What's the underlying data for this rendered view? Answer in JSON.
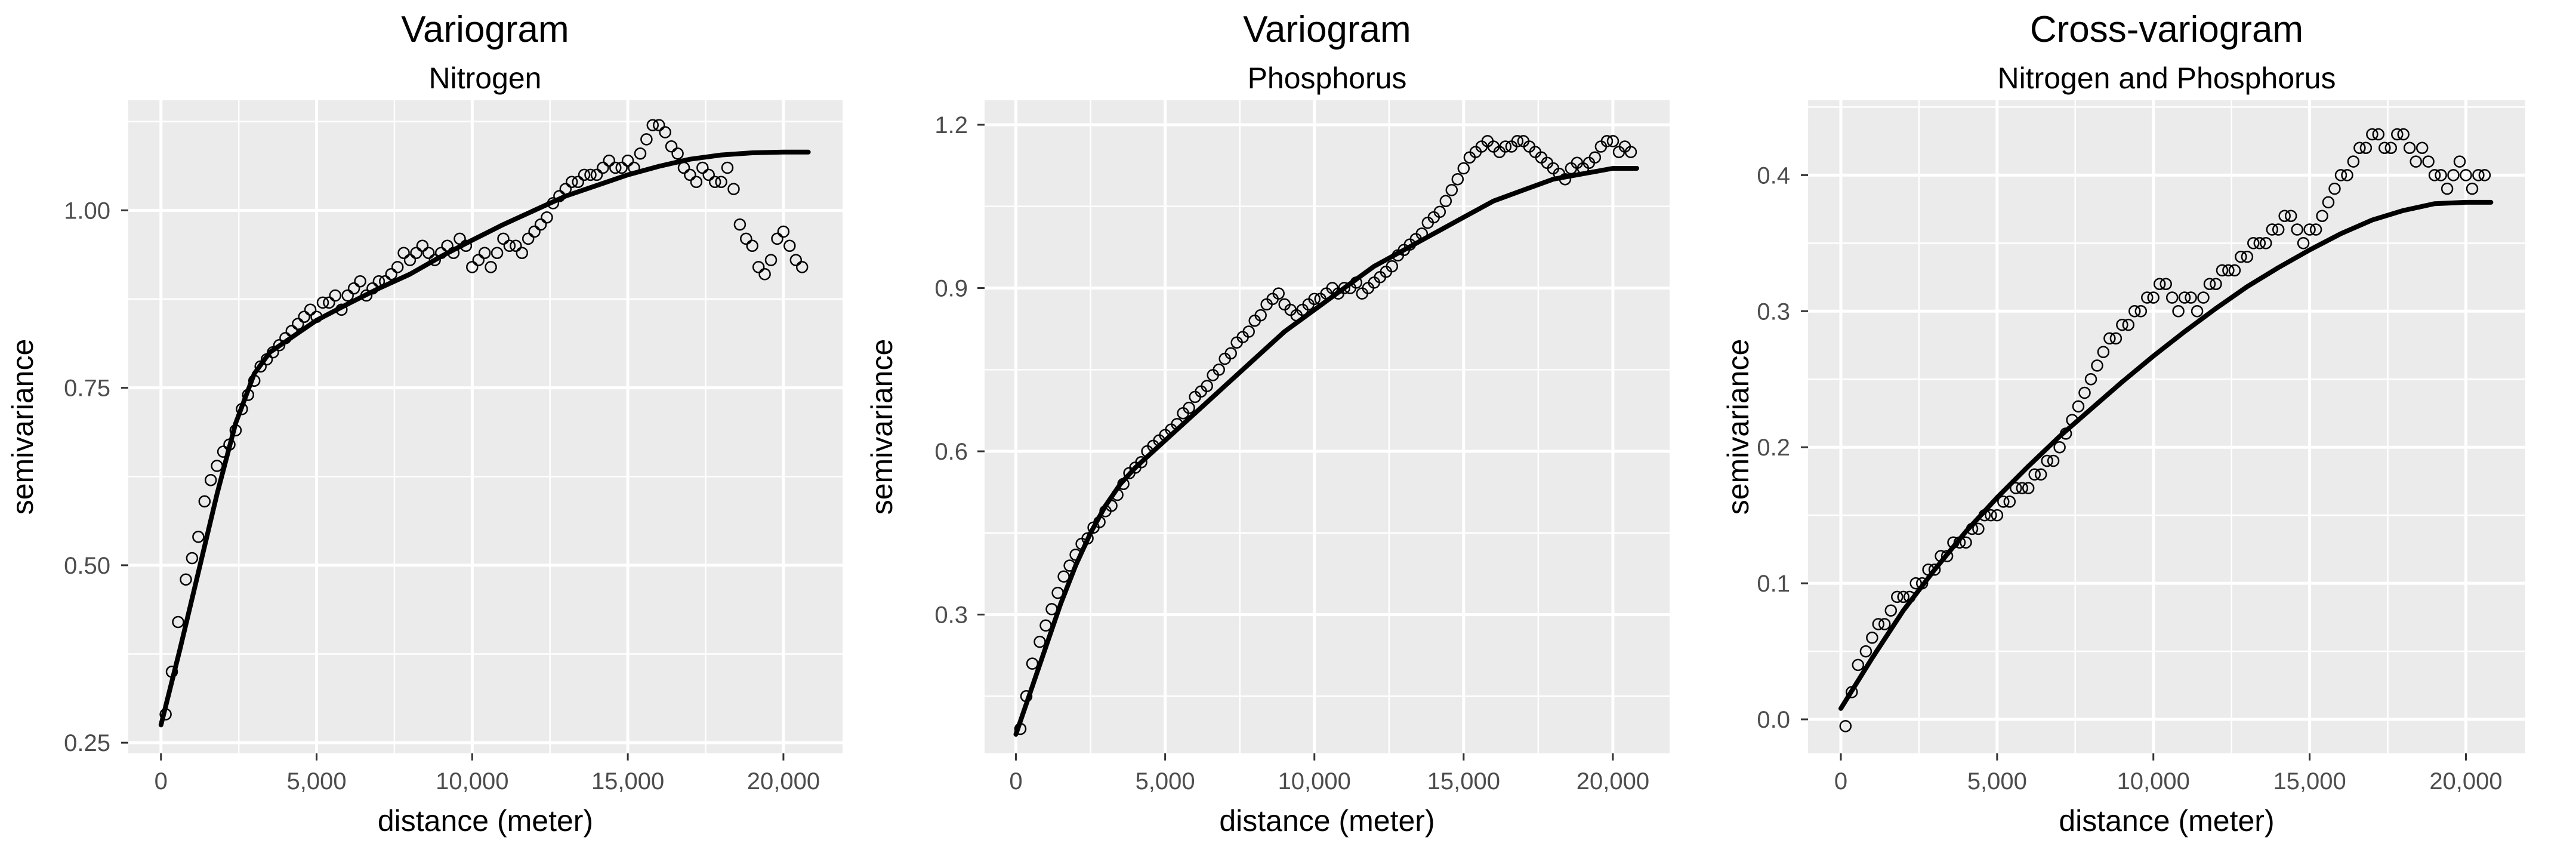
{
  "panels": [
    {
      "title": "Variogram",
      "subtitle": "Nitrogen",
      "xlabel": "distance (meter)",
      "ylabel": "semivariance"
    },
    {
      "title": "Variogram",
      "subtitle": "Phosphorus",
      "xlabel": "distance (meter)",
      "ylabel": "semivariance"
    },
    {
      "title": "Cross-variogram",
      "subtitle": "Nitrogen and Phosphorus",
      "xlabel": "distance (meter)",
      "ylabel": "semivariance"
    }
  ],
  "colors": {
    "panel_bg": "#ebebeb",
    "grid": "#ffffff",
    "points": "#000000",
    "fit_line": "#000000",
    "axis_text": "#4d4d4d"
  },
  "chart_data": [
    {
      "type": "scatter",
      "title": "Variogram",
      "subtitle": "Nitrogen",
      "xlabel": "distance (meter)",
      "ylabel": "semivariance",
      "xlim": [
        -1050,
        21900
      ],
      "ylim": [
        0.235,
        1.155
      ],
      "x_ticks": [
        0,
        5000,
        10000,
        15000,
        20000
      ],
      "x_tick_labels": [
        "0",
        "5,000",
        "10,000",
        "15,000",
        "20,000"
      ],
      "y_ticks": [
        0.25,
        0.5,
        0.75,
        1.0
      ],
      "y_tick_labels": [
        "0.25",
        "0.50",
        "0.75",
        "1.00"
      ],
      "grid": true,
      "series": [
        {
          "kind": "points",
          "x": [
            150,
            350,
            550,
            800,
            1000,
            1200,
            1400,
            1600,
            1800,
            2000,
            2200,
            2400,
            2600,
            2800,
            3000,
            3200,
            3400,
            3600,
            3800,
            4000,
            4200,
            4400,
            4600,
            4800,
            5000,
            5200,
            5400,
            5600,
            5800,
            6000,
            6200,
            6400,
            6600,
            6800,
            7000,
            7200,
            7400,
            7600,
            7800,
            8000,
            8200,
            8400,
            8600,
            8800,
            9000,
            9200,
            9400,
            9600,
            9800,
            10000,
            10200,
            10400,
            10600,
            10800,
            11000,
            11200,
            11400,
            11600,
            11800,
            12000,
            12200,
            12400,
            12600,
            12800,
            13000,
            13200,
            13400,
            13600,
            13800,
            14000,
            14200,
            14400,
            14600,
            14800,
            15000,
            15200,
            15400,
            15600,
            15800,
            16000,
            16200,
            16400,
            16600,
            16800,
            17000,
            17200,
            17400,
            17600,
            17800,
            18000,
            18200,
            18400,
            18600,
            18800,
            19000,
            19200,
            19400,
            19600,
            19800,
            20000,
            20200,
            20400,
            20600
          ],
          "y": [
            0.29,
            0.35,
            0.42,
            0.48,
            0.51,
            0.54,
            0.59,
            0.62,
            0.64,
            0.66,
            0.67,
            0.69,
            0.72,
            0.74,
            0.76,
            0.78,
            0.79,
            0.8,
            0.81,
            0.82,
            0.83,
            0.84,
            0.85,
            0.86,
            0.85,
            0.87,
            0.87,
            0.88,
            0.86,
            0.88,
            0.89,
            0.9,
            0.88,
            0.89,
            0.9,
            0.9,
            0.91,
            0.92,
            0.94,
            0.93,
            0.94,
            0.95,
            0.94,
            0.93,
            0.94,
            0.95,
            0.94,
            0.96,
            0.95,
            0.92,
            0.93,
            0.94,
            0.92,
            0.94,
            0.96,
            0.95,
            0.95,
            0.94,
            0.96,
            0.97,
            0.98,
            0.99,
            1.01,
            1.02,
            1.03,
            1.04,
            1.04,
            1.05,
            1.05,
            1.05,
            1.06,
            1.07,
            1.06,
            1.06,
            1.07,
            1.06,
            1.08,
            1.1,
            1.12,
            1.12,
            1.11,
            1.09,
            1.08,
            1.06,
            1.05,
            1.04,
            1.06,
            1.05,
            1.04,
            1.04,
            1.06,
            1.03,
            0.98,
            0.96,
            0.95,
            0.92,
            0.91,
            0.93,
            0.96,
            0.97,
            0.95,
            0.93,
            0.92
          ]
        },
        {
          "kind": "line",
          "x": [
            0,
            600,
            1200,
            1800,
            2400,
            3000,
            3500,
            4000,
            5000,
            6000,
            7000,
            8000,
            9000,
            10000,
            11000,
            12000,
            13000,
            14000,
            15000,
            16000,
            17000,
            18000,
            19000,
            20000,
            20800
          ],
          "y": [
            0.275,
            0.38,
            0.49,
            0.6,
            0.7,
            0.77,
            0.8,
            0.815,
            0.845,
            0.868,
            0.89,
            0.91,
            0.935,
            0.958,
            0.98,
            1.0,
            1.02,
            1.035,
            1.05,
            1.062,
            1.072,
            1.078,
            1.081,
            1.082,
            1.082
          ]
        }
      ]
    },
    {
      "type": "scatter",
      "title": "Variogram",
      "subtitle": "Phosphorus",
      "xlabel": "distance (meter)",
      "ylabel": "semivariance",
      "xlim": [
        -1050,
        21900
      ],
      "ylim": [
        0.045,
        1.245
      ],
      "x_ticks": [
        0,
        5000,
        10000,
        15000,
        20000
      ],
      "x_tick_labels": [
        "0",
        "5,000",
        "10,000",
        "15,000",
        "20,000"
      ],
      "y_ticks": [
        0.3,
        0.6,
        0.9,
        1.2
      ],
      "y_tick_labels": [
        "0.3",
        "0.6",
        "0.9",
        "1.2"
      ],
      "grid": true,
      "series": [
        {
          "kind": "points",
          "x": [
            150,
            350,
            550,
            800,
            1000,
            1200,
            1400,
            1600,
            1800,
            2000,
            2200,
            2400,
            2600,
            2800,
            3000,
            3200,
            3400,
            3600,
            3800,
            4000,
            4200,
            4400,
            4600,
            4800,
            5000,
            5200,
            5400,
            5600,
            5800,
            6000,
            6200,
            6400,
            6600,
            6800,
            7000,
            7200,
            7400,
            7600,
            7800,
            8000,
            8200,
            8400,
            8600,
            8800,
            9000,
            9200,
            9400,
            9600,
            9800,
            10000,
            10200,
            10400,
            10600,
            10800,
            11000,
            11200,
            11400,
            11600,
            11800,
            12000,
            12200,
            12400,
            12600,
            12800,
            13000,
            13200,
            13400,
            13600,
            13800,
            14000,
            14200,
            14400,
            14600,
            14800,
            15000,
            15200,
            15400,
            15600,
            15800,
            16000,
            16200,
            16400,
            16600,
            16800,
            17000,
            17200,
            17400,
            17600,
            17800,
            18000,
            18200,
            18400,
            18600,
            18800,
            19000,
            19200,
            19400,
            19600,
            19800,
            20000,
            20200,
            20400,
            20600
          ],
          "y": [
            0.09,
            0.15,
            0.21,
            0.25,
            0.28,
            0.31,
            0.34,
            0.37,
            0.39,
            0.41,
            0.43,
            0.44,
            0.46,
            0.47,
            0.49,
            0.5,
            0.52,
            0.54,
            0.56,
            0.57,
            0.58,
            0.6,
            0.61,
            0.62,
            0.63,
            0.64,
            0.65,
            0.67,
            0.68,
            0.7,
            0.71,
            0.72,
            0.74,
            0.75,
            0.77,
            0.78,
            0.8,
            0.81,
            0.82,
            0.84,
            0.85,
            0.87,
            0.88,
            0.89,
            0.87,
            0.86,
            0.85,
            0.86,
            0.87,
            0.88,
            0.88,
            0.89,
            0.9,
            0.89,
            0.9,
            0.9,
            0.91,
            0.89,
            0.9,
            0.91,
            0.92,
            0.93,
            0.94,
            0.96,
            0.97,
            0.98,
            0.99,
            1.0,
            1.02,
            1.03,
            1.04,
            1.06,
            1.08,
            1.1,
            1.12,
            1.14,
            1.15,
            1.16,
            1.17,
            1.16,
            1.15,
            1.16,
            1.16,
            1.17,
            1.17,
            1.16,
            1.15,
            1.14,
            1.13,
            1.12,
            1.11,
            1.1,
            1.12,
            1.13,
            1.12,
            1.13,
            1.14,
            1.16,
            1.17,
            1.17,
            1.15,
            1.16,
            1.15
          ]
        },
        {
          "kind": "line",
          "x": [
            0,
            500,
            1000,
            1500,
            2000,
            2500,
            3000,
            3500,
            4000,
            5000,
            6000,
            7000,
            8000,
            9000,
            10000,
            11000,
            12000,
            13000,
            14000,
            15000,
            16000,
            17000,
            18000,
            19000,
            20000,
            20800
          ],
          "y": [
            0.08,
            0.16,
            0.24,
            0.32,
            0.39,
            0.45,
            0.5,
            0.54,
            0.57,
            0.62,
            0.67,
            0.72,
            0.77,
            0.82,
            0.86,
            0.9,
            0.94,
            0.97,
            1.0,
            1.03,
            1.06,
            1.08,
            1.1,
            1.11,
            1.12,
            1.12
          ]
        }
      ]
    },
    {
      "type": "scatter",
      "title": "Cross-variogram",
      "subtitle": "Nitrogen and Phosphorus",
      "xlabel": "distance (meter)",
      "ylabel": "semivariance",
      "xlim": [
        -1050,
        21900
      ],
      "ylim": [
        -0.025,
        0.455
      ],
      "x_ticks": [
        0,
        5000,
        10000,
        15000,
        20000
      ],
      "x_tick_labels": [
        "0",
        "5,000",
        "10,000",
        "15,000",
        "20,000"
      ],
      "y_ticks": [
        0.0,
        0.1,
        0.2,
        0.3,
        0.4
      ],
      "y_tick_labels": [
        "0.0",
        "0.1",
        "0.2",
        "0.3",
        "0.4"
      ],
      "grid": true,
      "series": [
        {
          "kind": "points",
          "x": [
            150,
            350,
            550,
            800,
            1000,
            1200,
            1400,
            1600,
            1800,
            2000,
            2200,
            2400,
            2600,
            2800,
            3000,
            3200,
            3400,
            3600,
            3800,
            4000,
            4200,
            4400,
            4600,
            4800,
            5000,
            5200,
            5400,
            5600,
            5800,
            6000,
            6200,
            6400,
            6600,
            6800,
            7000,
            7200,
            7400,
            7600,
            7800,
            8000,
            8200,
            8400,
            8600,
            8800,
            9000,
            9200,
            9400,
            9600,
            9800,
            10000,
            10200,
            10400,
            10600,
            10800,
            11000,
            11200,
            11400,
            11600,
            11800,
            12000,
            12200,
            12400,
            12600,
            12800,
            13000,
            13200,
            13400,
            13600,
            13800,
            14000,
            14200,
            14400,
            14600,
            14800,
            15000,
            15200,
            15400,
            15600,
            15800,
            16000,
            16200,
            16400,
            16600,
            16800,
            17000,
            17200,
            17400,
            17600,
            17800,
            18000,
            18200,
            18400,
            18600,
            18800,
            19000,
            19200,
            19400,
            19600,
            19800,
            20000,
            20200,
            20400,
            20600
          ],
          "y": [
            -0.005,
            0.02,
            0.04,
            0.05,
            0.06,
            0.07,
            0.07,
            0.08,
            0.09,
            0.09,
            0.09,
            0.1,
            0.1,
            0.11,
            0.11,
            0.12,
            0.12,
            0.13,
            0.13,
            0.13,
            0.14,
            0.14,
            0.15,
            0.15,
            0.15,
            0.16,
            0.16,
            0.17,
            0.17,
            0.17,
            0.18,
            0.18,
            0.19,
            0.19,
            0.2,
            0.21,
            0.22,
            0.23,
            0.24,
            0.25,
            0.26,
            0.27,
            0.28,
            0.28,
            0.29,
            0.29,
            0.3,
            0.3,
            0.31,
            0.31,
            0.32,
            0.32,
            0.31,
            0.3,
            0.31,
            0.31,
            0.3,
            0.31,
            0.32,
            0.32,
            0.33,
            0.33,
            0.33,
            0.34,
            0.34,
            0.35,
            0.35,
            0.35,
            0.36,
            0.36,
            0.37,
            0.37,
            0.36,
            0.35,
            0.36,
            0.36,
            0.37,
            0.38,
            0.39,
            0.4,
            0.4,
            0.41,
            0.42,
            0.42,
            0.43,
            0.43,
            0.42,
            0.42,
            0.43,
            0.43,
            0.42,
            0.41,
            0.42,
            0.41,
            0.4,
            0.4,
            0.39,
            0.4,
            0.41,
            0.4,
            0.39,
            0.4,
            0.4
          ]
        },
        {
          "kind": "line",
          "x": [
            0,
            1000,
            2000,
            3000,
            4000,
            5000,
            6000,
            7000,
            8000,
            9000,
            10000,
            11000,
            12000,
            13000,
            14000,
            15000,
            16000,
            17000,
            18000,
            19000,
            20000,
            20800
          ],
          "y": [
            0.008,
            0.045,
            0.08,
            0.11,
            0.138,
            0.163,
            0.186,
            0.208,
            0.228,
            0.248,
            0.267,
            0.285,
            0.302,
            0.318,
            0.332,
            0.345,
            0.357,
            0.367,
            0.374,
            0.379,
            0.38,
            0.38
          ]
        }
      ]
    }
  ]
}
